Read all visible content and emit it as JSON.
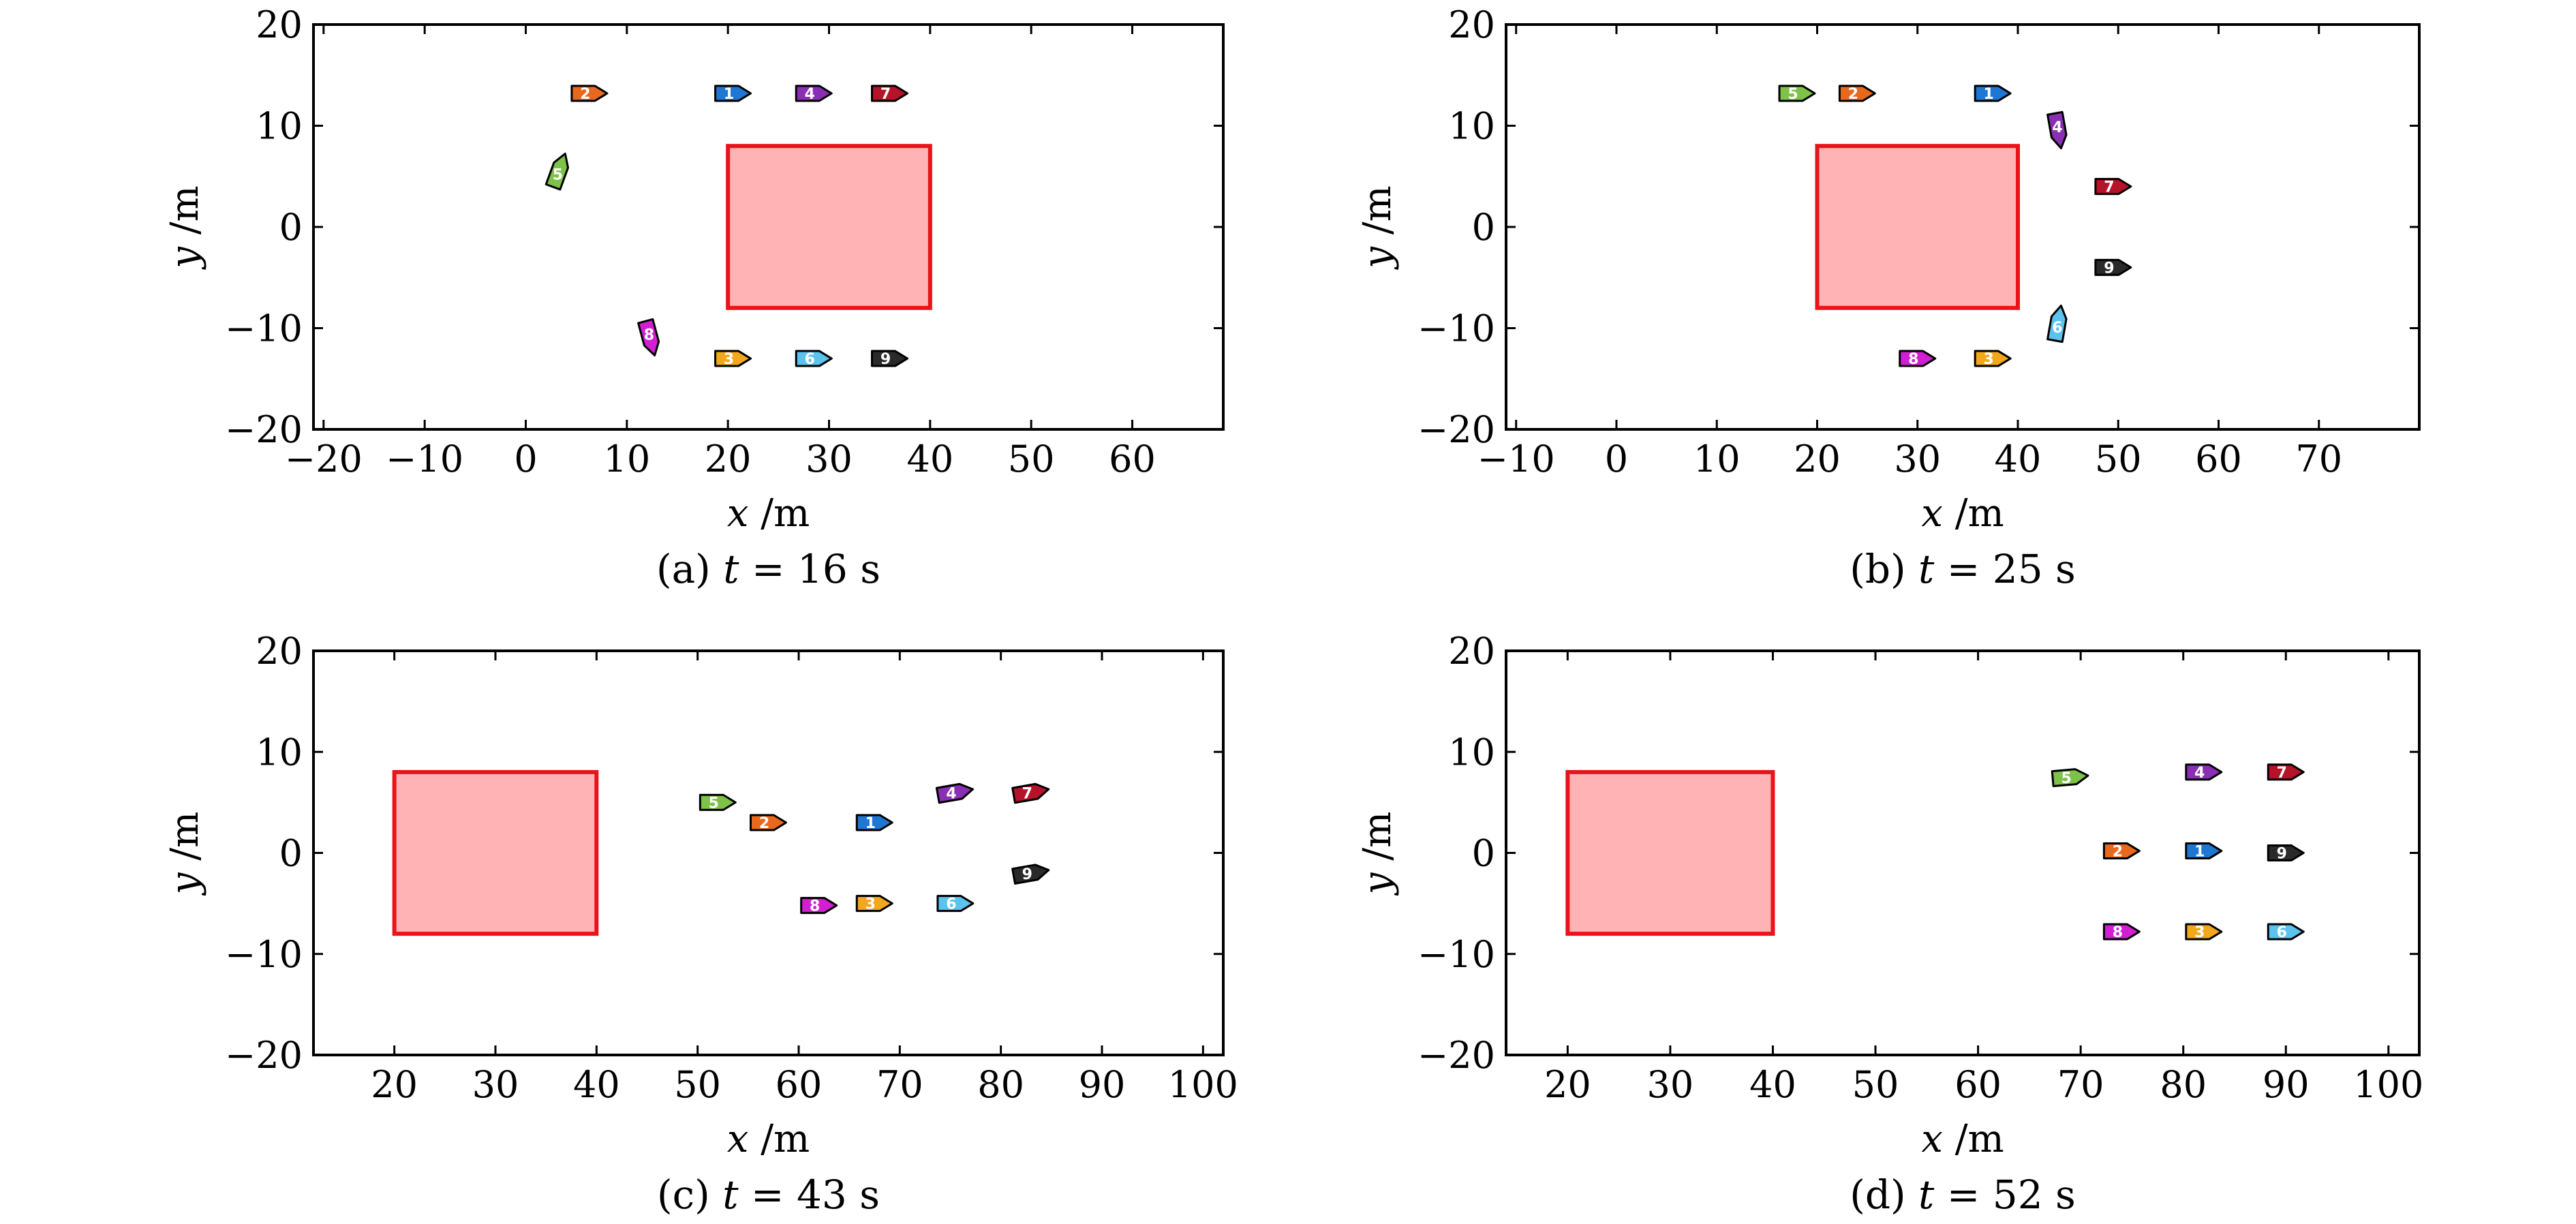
{
  "figure": {
    "background": "#ffffff",
    "obstacle_fill": "#ffb3b5",
    "obstacle_stroke": "#e8141a"
  },
  "boat_colors": {
    "1": "#1f77d4",
    "2": "#e8691e",
    "3": "#f2a81d",
    "4": "#8a2fb3",
    "5": "#7ec24a",
    "6": "#5bc3ee",
    "7": "#b5132a",
    "8": "#d21fd3",
    "9": "#2a2a2a"
  },
  "chart_data": [
    {
      "type": "scatter",
      "caption_prefix": "(a)",
      "caption_var": "t",
      "caption_value": "= 16 s",
      "xlabel_var": "x",
      "xlabel_unit": "/m",
      "ylabel_var": "y",
      "ylabel_unit": "/m",
      "xlim": [
        -21,
        69
      ],
      "ylim": [
        -20,
        20
      ],
      "xticks": [
        -20,
        -10,
        0,
        10,
        20,
        30,
        40,
        50,
        60
      ],
      "yticks": [
        -20,
        -10,
        0,
        10,
        20
      ],
      "obstacle": {
        "x0": 20,
        "x1": 40,
        "y0": -8,
        "y1": 8
      },
      "boats": [
        {
          "id": "1",
          "x": 20.5,
          "y": 13.2,
          "heading": 0
        },
        {
          "id": "2",
          "x": 6.3,
          "y": 13.2,
          "heading": 0
        },
        {
          "id": "3",
          "x": 20.5,
          "y": -13.0,
          "heading": 0
        },
        {
          "id": "4",
          "x": 28.5,
          "y": 13.2,
          "heading": 0
        },
        {
          "id": "5",
          "x": 3.3,
          "y": 5.6,
          "heading": 70
        },
        {
          "id": "6",
          "x": 28.5,
          "y": -13.0,
          "heading": 0
        },
        {
          "id": "7",
          "x": 36.0,
          "y": 13.2,
          "heading": 0
        },
        {
          "id": "8",
          "x": 12.3,
          "y": -11.0,
          "heading": -75
        },
        {
          "id": "9",
          "x": 36.0,
          "y": -13.0,
          "heading": 0
        }
      ]
    },
    {
      "type": "scatter",
      "caption_prefix": "(b)",
      "caption_var": "t",
      "caption_value": "= 25 s",
      "xlabel_var": "x",
      "xlabel_unit": "/m",
      "ylabel_var": "y",
      "ylabel_unit": "/m",
      "xlim": [
        -11,
        80
      ],
      "ylim": [
        -20,
        20
      ],
      "xticks": [
        -10,
        0,
        10,
        20,
        30,
        40,
        50,
        60,
        70
      ],
      "yticks": [
        -20,
        -10,
        0,
        10,
        20
      ],
      "obstacle": {
        "x0": 20,
        "x1": 40,
        "y0": -8,
        "y1": 8
      },
      "boats": [
        {
          "id": "1",
          "x": 37.5,
          "y": 13.2,
          "heading": 0
        },
        {
          "id": "2",
          "x": 24.0,
          "y": 13.2,
          "heading": 0
        },
        {
          "id": "3",
          "x": 37.5,
          "y": -13.0,
          "heading": 0
        },
        {
          "id": "4",
          "x": 44.0,
          "y": 9.5,
          "heading": -80
        },
        {
          "id": "5",
          "x": 18.0,
          "y": 13.2,
          "heading": 0
        },
        {
          "id": "6",
          "x": 44.0,
          "y": -9.5,
          "heading": 80
        },
        {
          "id": "7",
          "x": 49.5,
          "y": 4.0,
          "heading": 0
        },
        {
          "id": "8",
          "x": 30.0,
          "y": -13.0,
          "heading": 0
        },
        {
          "id": "9",
          "x": 49.5,
          "y": -4.0,
          "heading": 0
        }
      ]
    },
    {
      "type": "scatter",
      "caption_prefix": "(c)",
      "caption_var": "t",
      "caption_value": "= 43 s",
      "xlabel_var": "x",
      "xlabel_unit": "/m",
      "ylabel_var": "y",
      "ylabel_unit": "/m",
      "xlim": [
        12,
        102
      ],
      "ylim": [
        -20,
        20
      ],
      "xticks": [
        20,
        30,
        40,
        50,
        60,
        70,
        80,
        90,
        100
      ],
      "yticks": [
        -20,
        -10,
        0,
        10,
        20
      ],
      "obstacle": {
        "x0": 20,
        "x1": 40,
        "y0": -8,
        "y1": 8
      },
      "boats": [
        {
          "id": "1",
          "x": 67.5,
          "y": 3.0,
          "heading": 0
        },
        {
          "id": "2",
          "x": 57.0,
          "y": 3.0,
          "heading": 0
        },
        {
          "id": "3",
          "x": 67.5,
          "y": -5.0,
          "heading": 0
        },
        {
          "id": "4",
          "x": 75.5,
          "y": 6.0,
          "heading": 10
        },
        {
          "id": "5",
          "x": 52.0,
          "y": 5.0,
          "heading": 0
        },
        {
          "id": "6",
          "x": 75.5,
          "y": -5.0,
          "heading": 0
        },
        {
          "id": "7",
          "x": 83.0,
          "y": 6.0,
          "heading": 10
        },
        {
          "id": "8",
          "x": 62.0,
          "y": -5.2,
          "heading": 0
        },
        {
          "id": "9",
          "x": 83.0,
          "y": -2.0,
          "heading": 10
        }
      ]
    },
    {
      "type": "scatter",
      "caption_prefix": "(d)",
      "caption_var": "t",
      "caption_value": "= 52 s",
      "xlabel_var": "x",
      "xlabel_unit": "/m",
      "ylabel_var": "y",
      "ylabel_unit": "/m",
      "xlim": [
        14,
        103
      ],
      "ylim": [
        -20,
        20
      ],
      "xticks": [
        20,
        30,
        40,
        50,
        60,
        70,
        80,
        90,
        100
      ],
      "yticks": [
        -20,
        -10,
        0,
        10,
        20
      ],
      "obstacle": {
        "x0": 20,
        "x1": 40,
        "y0": -8,
        "y1": 8
      },
      "boats": [
        {
          "id": "1",
          "x": 82.0,
          "y": 0.2,
          "heading": 0
        },
        {
          "id": "2",
          "x": 74.0,
          "y": 0.2,
          "heading": 0
        },
        {
          "id": "3",
          "x": 82.0,
          "y": -7.8,
          "heading": 0
        },
        {
          "id": "4",
          "x": 82.0,
          "y": 8.0,
          "heading": 0
        },
        {
          "id": "5",
          "x": 69.0,
          "y": 7.5,
          "heading": 5
        },
        {
          "id": "6",
          "x": 90.0,
          "y": -7.8,
          "heading": 0
        },
        {
          "id": "7",
          "x": 90.0,
          "y": 8.0,
          "heading": 0
        },
        {
          "id": "8",
          "x": 74.0,
          "y": -7.8,
          "heading": 0
        },
        {
          "id": "9",
          "x": 90.0,
          "y": 0.0,
          "heading": 0
        }
      ]
    }
  ]
}
